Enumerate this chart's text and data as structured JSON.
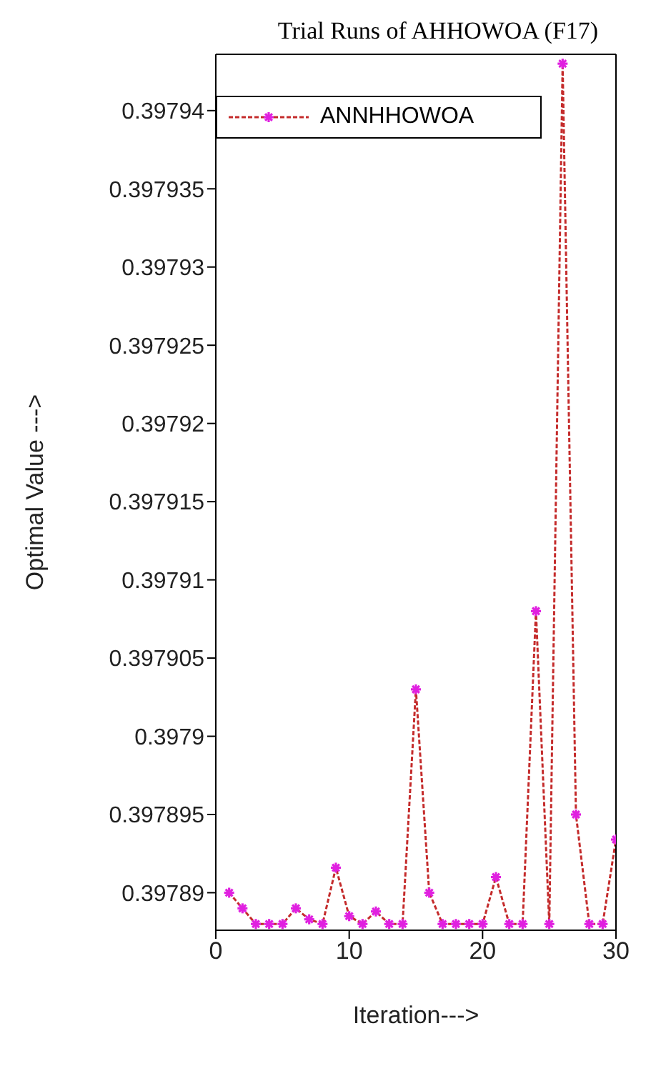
{
  "chart_data": {
    "type": "line",
    "title": "Trial Runs of AHHOWOA (F17)",
    "xlabel": "Iteration--->",
    "ylabel": "Optimal Value --->",
    "x": [
      1,
      2,
      3,
      4,
      5,
      6,
      7,
      8,
      9,
      10,
      11,
      12,
      13,
      14,
      15,
      16,
      17,
      18,
      19,
      20,
      21,
      22,
      23,
      24,
      25,
      26,
      27,
      28,
      29,
      30
    ],
    "series": [
      {
        "name": "ANNHHOWOA",
        "color": "#c42b2b",
        "colors": [
          "#e020e0",
          "#e020e0",
          "#e020e0",
          "#e020e0",
          "#e020e0",
          "#e020e0",
          "#e020e0",
          "#e020e0",
          "#e020e0",
          "#e020e0",
          "#e020e0",
          "#e020e0",
          "#e020e0",
          "#e020e0",
          "#e020e0",
          "#e020e0",
          "#e020e0",
          "#e020e0",
          "#e020e0",
          "#e020e0",
          "#e020e0",
          "#e020e0",
          "#e020e0",
          "#e020e0",
          "#e020e0",
          "#e020e0",
          "#e020e0",
          "#e020e0",
          "#e020e0",
          "#e020e0"
        ],
        "values": [
          0.39789,
          0.397889,
          0.397888,
          0.397888,
          0.397888,
          0.397889,
          0.3978883,
          0.397888,
          0.3978916,
          0.3978885,
          0.397888,
          0.3978888,
          0.397888,
          0.397888,
          0.397903,
          0.39789,
          0.397888,
          0.397888,
          0.397888,
          0.397888,
          0.397891,
          0.397888,
          0.397888,
          0.397908,
          0.397888,
          0.397943,
          0.397895,
          0.397888,
          0.397888,
          0.3978934
        ]
      }
    ],
    "xlim": [
      0,
      30
    ],
    "xticks": [
      0,
      10,
      20,
      30
    ],
    "ylim": [
      0.3978876,
      0.3979436
    ],
    "yticks": [
      0.39789,
      0.397895,
      0.3979,
      0.397905,
      0.39791,
      0.397915,
      0.39792,
      0.397925,
      0.39793,
      0.397935,
      0.39794
    ],
    "grid": false,
    "legend": "top left",
    "marker": "cross",
    "line_style": "dashed"
  }
}
